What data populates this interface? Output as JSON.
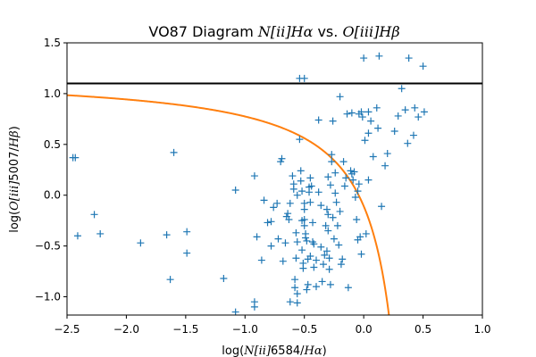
{
  "chart_data": {
    "type": "scatter",
    "title": {
      "p1": "VO87 Diagram ",
      "p2": "N[ii]Hα",
      "p3": " vs. ",
      "p4": "O[iii]Hβ"
    },
    "xlabel": {
      "p1": "log(",
      "p2": "N[ii]",
      "p3": "6584/",
      "p4": "Hα",
      "p5": ")"
    },
    "ylabel": {
      "p1": "log(",
      "p2": "O[iii]",
      "p3": "5007/",
      "p4": "Hβ",
      "p5": ")"
    },
    "xlim": [
      -2.5,
      1.0
    ],
    "ylim": [
      -1.18,
      1.5
    ],
    "xticks": [
      -2.5,
      -2.0,
      -1.5,
      -1.0,
      -0.5,
      0.0,
      0.5,
      1.0
    ],
    "xtick_labels": [
      "−2.5",
      "−2.0",
      "−1.5",
      "−1.0",
      "−0.5",
      "0.0",
      "0.5",
      "1.0"
    ],
    "yticks": [
      -1.0,
      -0.5,
      0.0,
      0.5,
      1.0,
      1.5
    ],
    "ytick_labels": [
      "−1.0",
      "−0.5",
      "0.0",
      "0.5",
      "1.0",
      "1.5"
    ],
    "grid": false,
    "colors": {
      "points": "#1f77b4",
      "curve": "#ff7f0e",
      "line": "#000000"
    },
    "hline": {
      "y": 1.1
    },
    "curve": {
      "formula": "0.61/(x-0.47)+1.19",
      "x_range": [
        -2.5,
        0.22
      ]
    },
    "series": [
      {
        "marker": "plus",
        "points": [
          [
            -2.45,
            0.37
          ],
          [
            -2.43,
            0.37
          ],
          [
            -2.41,
            -0.4
          ],
          [
            -2.27,
            -0.19
          ],
          [
            -2.22,
            -0.38
          ],
          [
            -1.88,
            -0.47
          ],
          [
            -1.66,
            -0.39
          ],
          [
            -1.63,
            -0.83
          ],
          [
            -1.6,
            0.42
          ],
          [
            -1.49,
            -0.36
          ],
          [
            -1.49,
            -0.57
          ],
          [
            -1.18,
            -0.82
          ],
          [
            -1.08,
            0.05
          ],
          [
            -1.08,
            -1.15
          ],
          [
            -0.92,
            0.19
          ],
          [
            -0.92,
            -1.05
          ],
          [
            -0.92,
            -1.1
          ],
          [
            -0.9,
            -0.41
          ],
          [
            -0.86,
            -0.64
          ],
          [
            -0.84,
            -0.05
          ],
          [
            -0.81,
            -0.27
          ],
          [
            -0.78,
            -0.26
          ],
          [
            -0.78,
            -0.5
          ],
          [
            -0.76,
            -0.12
          ],
          [
            -0.73,
            -0.08
          ],
          [
            -0.72,
            -0.43
          ],
          [
            -0.7,
            0.33
          ],
          [
            -0.69,
            0.36
          ],
          [
            -0.68,
            -0.65
          ],
          [
            -0.66,
            -0.47
          ],
          [
            -0.65,
            -0.21
          ],
          [
            -0.64,
            -0.18
          ],
          [
            -0.63,
            -0.24
          ],
          [
            -0.62,
            -0.08
          ],
          [
            -0.62,
            -1.05
          ],
          [
            -0.6,
            0.19
          ],
          [
            -0.59,
            0.11
          ],
          [
            -0.59,
            0.06
          ],
          [
            -0.58,
            -0.83
          ],
          [
            -0.58,
            -0.91
          ],
          [
            -0.57,
            -0.62
          ],
          [
            -0.57,
            -0.37
          ],
          [
            -0.56,
            0.0
          ],
          [
            -0.56,
            -0.46
          ],
          [
            -0.56,
            -0.97
          ],
          [
            -0.56,
            -1.06
          ],
          [
            -0.54,
            1.15
          ],
          [
            -0.54,
            0.55
          ],
          [
            -0.53,
            0.24
          ],
          [
            -0.53,
            0.14
          ],
          [
            -0.52,
            0.04
          ],
          [
            -0.52,
            -0.25
          ],
          [
            -0.52,
            -0.54
          ],
          [
            -0.51,
            -0.67
          ],
          [
            -0.51,
            -0.72
          ],
          [
            -0.5,
            1.15
          ],
          [
            -0.5,
            -0.08
          ],
          [
            -0.5,
            -0.14
          ],
          [
            -0.5,
            -0.24
          ],
          [
            -0.5,
            -0.3
          ],
          [
            -0.49,
            -0.38
          ],
          [
            -0.49,
            -0.42
          ],
          [
            -0.48,
            -0.93
          ],
          [
            -0.48,
            -0.45
          ],
          [
            -0.47,
            -0.63
          ],
          [
            -0.47,
            -0.88
          ],
          [
            -0.46,
            0.08
          ],
          [
            -0.46,
            0.03
          ],
          [
            -0.45,
            -0.07
          ],
          [
            -0.45,
            0.17
          ],
          [
            -0.45,
            -0.6
          ],
          [
            -0.44,
            0.09
          ],
          [
            -0.43,
            -0.27
          ],
          [
            -0.43,
            -0.46
          ],
          [
            -0.42,
            -0.48
          ],
          [
            -0.42,
            -0.71
          ],
          [
            -0.4,
            -0.64
          ],
          [
            -0.4,
            -0.9
          ],
          [
            -0.38,
            0.74
          ],
          [
            -0.38,
            0.03
          ],
          [
            -0.36,
            -0.1
          ],
          [
            -0.36,
            -0.51
          ],
          [
            -0.35,
            -0.85
          ],
          [
            -0.34,
            -0.68
          ],
          [
            -0.33,
            -0.59
          ],
          [
            -0.32,
            -0.3
          ],
          [
            -0.31,
            -0.14
          ],
          [
            -0.31,
            -0.55
          ],
          [
            -0.3,
            0.18
          ],
          [
            -0.3,
            -0.19
          ],
          [
            -0.3,
            -0.35
          ],
          [
            -0.29,
            -0.62
          ],
          [
            -0.29,
            -0.73
          ],
          [
            -0.28,
            0.1
          ],
          [
            -0.28,
            -0.88
          ],
          [
            -0.27,
            0.4
          ],
          [
            -0.27,
            0.33
          ],
          [
            -0.26,
            0.73
          ],
          [
            -0.26,
            -0.22
          ],
          [
            -0.25,
            -0.43
          ],
          [
            -0.24,
            0.02
          ],
          [
            -0.24,
            0.22
          ],
          [
            -0.23,
            -0.07
          ],
          [
            -0.22,
            -0.3
          ],
          [
            -0.21,
            -0.49
          ],
          [
            -0.2,
            0.97
          ],
          [
            -0.2,
            -0.16
          ],
          [
            -0.19,
            -0.68
          ],
          [
            -0.18,
            -0.63
          ],
          [
            -0.17,
            0.33
          ],
          [
            -0.16,
            0.09
          ],
          [
            -0.15,
            0.17
          ],
          [
            -0.14,
            0.8
          ],
          [
            -0.13,
            -0.91
          ],
          [
            -0.11,
            0.24
          ],
          [
            -0.1,
            0.21
          ],
          [
            -0.1,
            0.81
          ],
          [
            -0.09,
            0.15
          ],
          [
            -0.08,
            0.23
          ],
          [
            -0.07,
            -0.02
          ],
          [
            -0.06,
            -0.24
          ],
          [
            -0.05,
            0.04
          ],
          [
            -0.05,
            -0.44
          ],
          [
            -0.04,
            0.11
          ],
          [
            -0.04,
            0.8
          ],
          [
            -0.03,
            -0.41
          ],
          [
            -0.02,
            0.82
          ],
          [
            -0.02,
            -0.58
          ],
          [
            -0.01,
            0.77
          ],
          [
            0.0,
            1.35
          ],
          [
            0.01,
            0.54
          ],
          [
            0.02,
            -0.38
          ],
          [
            0.04,
            0.61
          ],
          [
            0.04,
            0.15
          ],
          [
            0.04,
            0.82
          ],
          [
            0.06,
            0.73
          ],
          [
            0.08,
            0.38
          ],
          [
            0.11,
            0.86
          ],
          [
            0.12,
            0.66
          ],
          [
            0.13,
            1.37
          ],
          [
            0.15,
            -0.11
          ],
          [
            0.18,
            0.29
          ],
          [
            0.2,
            0.41
          ],
          [
            0.26,
            0.63
          ],
          [
            0.29,
            0.78
          ],
          [
            0.32,
            1.05
          ],
          [
            0.35,
            0.84
          ],
          [
            0.37,
            0.51
          ],
          [
            0.38,
            1.35
          ],
          [
            0.42,
            0.59
          ],
          [
            0.43,
            0.86
          ],
          [
            0.46,
            0.77
          ],
          [
            0.5,
            1.27
          ],
          [
            0.51,
            0.82
          ]
        ]
      }
    ]
  }
}
